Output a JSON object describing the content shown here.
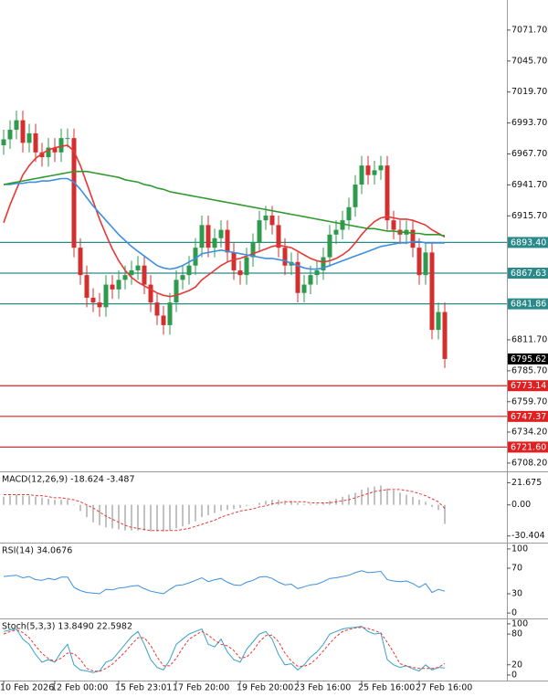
{
  "chart_data": [
    {
      "type": "candlestick",
      "categories": [
        "10 Feb 2026",
        null,
        null,
        null,
        null,
        null,
        null,
        null,
        "12 Feb 00:00",
        null,
        null,
        null,
        null,
        null,
        null,
        null,
        null,
        null,
        "15 Feb 23:01",
        null,
        null,
        null,
        null,
        null,
        null,
        null,
        null,
        "17 Feb 20:00",
        null,
        null,
        null,
        null,
        null,
        null,
        null,
        null,
        null,
        "19 Feb 20:00",
        null,
        null,
        null,
        null,
        null,
        null,
        null,
        null,
        "23 Feb 16:00",
        null,
        null,
        null,
        null,
        null,
        null,
        null,
        null,
        null,
        "25 Feb 16:00",
        null,
        null,
        null,
        null,
        null,
        null,
        null,
        null,
        "27 Feb 16:00",
        null,
        null,
        null,
        null
      ],
      "candles": {
        "open": [
          6975,
          6980,
          6988,
          6996,
          6977,
          6985,
          6969,
          6965,
          6973,
          6969,
          6981,
          6981,
          6889,
          6866,
          6847,
          6843,
          6839,
          6858,
          6854,
          6862,
          6866,
          6870,
          6874,
          6858,
          6843,
          6832,
          6824,
          6843,
          6862,
          6866,
          6874,
          6889,
          6908,
          6889,
          6897,
          6904,
          6885,
          6870,
          6866,
          6881,
          6893,
          6912,
          6916,
          6908,
          6889,
          6874,
          6877,
          6851,
          6858,
          6866,
          6870,
          6881,
          6900,
          6904,
          6912,
          6923,
          6942,
          6958,
          6950,
          6954,
          6958,
          6912,
          6904,
          6900,
          6904,
          6889,
          6866,
          6885,
          6820,
          6835
        ],
        "high": [
          6988,
          6996,
          7004,
          7004,
          6993,
          6993,
          6977,
          6981,
          6981,
          6989,
          6989,
          6989,
          6897,
          6874,
          6855,
          6851,
          6866,
          6866,
          6870,
          6874,
          6878,
          6882,
          6882,
          6866,
          6851,
          6840,
          6851,
          6870,
          6874,
          6882,
          6897,
          6916,
          6916,
          6905,
          6912,
          6912,
          6893,
          6878,
          6889,
          6901,
          6920,
          6924,
          6924,
          6916,
          6897,
          6885,
          6885,
          6866,
          6874,
          6878,
          6889,
          6908,
          6912,
          6920,
          6931,
          6950,
          6966,
          6966,
          6962,
          6966,
          6966,
          6920,
          6912,
          6912,
          6912,
          6897,
          6893,
          6893,
          6843,
          6843
        ],
        "low": [
          6967,
          6972,
          6980,
          6969,
          6969,
          6961,
          6957,
          6957,
          6961,
          6961,
          6973,
          6881,
          6858,
          6839,
          6835,
          6831,
          6831,
          6846,
          6846,
          6854,
          6858,
          6862,
          6850,
          6835,
          6824,
          6816,
          6816,
          6835,
          6854,
          6858,
          6866,
          6881,
          6881,
          6881,
          6889,
          6877,
          6862,
          6858,
          6858,
          6873,
          6885,
          6904,
          6900,
          6881,
          6866,
          6866,
          6843,
          6843,
          6850,
          6858,
          6862,
          6873,
          6892,
          6896,
          6904,
          6915,
          6934,
          6942,
          6942,
          6946,
          6904,
          6896,
          6892,
          6892,
          6881,
          6858,
          6858,
          6812,
          6812,
          6788
        ],
        "close": [
          6980,
          6988,
          6996,
          6977,
          6985,
          6969,
          6965,
          6973,
          6969,
          6981,
          6981,
          6889,
          6866,
          6847,
          6843,
          6839,
          6858,
          6854,
          6862,
          6866,
          6870,
          6874,
          6858,
          6843,
          6832,
          6824,
          6843,
          6862,
          6866,
          6874,
          6889,
          6908,
          6889,
          6897,
          6904,
          6885,
          6870,
          6866,
          6881,
          6893,
          6912,
          6916,
          6908,
          6889,
          6874,
          6877,
          6851,
          6858,
          6866,
          6870,
          6881,
          6900,
          6904,
          6912,
          6923,
          6942,
          6958,
          6950,
          6954,
          6958,
          6912,
          6904,
          6900,
          6904,
          6889,
          6866,
          6885,
          6820,
          6835,
          6795.62
        ]
      },
      "up_color": "#2e9a4e",
      "down_color": "#d32f2f",
      "moving_averages": [
        {
          "color": "#e53935",
          "values": [
            6910,
            6925,
            6938,
            6950,
            6958,
            6964,
            6968,
            6971,
            6973,
            6974,
            6975,
            6970,
            6958,
            6943,
            6928,
            6913,
            6900,
            6888,
            6878,
            6870,
            6864,
            6860,
            6857,
            6854,
            6851,
            6849,
            6848,
            6849,
            6851,
            6853,
            6856,
            6862,
            6866,
            6870,
            6874,
            6877,
            6879,
            6880,
            6882,
            6884,
            6886,
            6888,
            6890,
            6891,
            6890,
            6889,
            6886,
            6883,
            6880,
            6878,
            6877,
            6878,
            6880,
            6883,
            6887,
            6893,
            6900,
            6906,
            6911,
            6914,
            6915,
            6914,
            6913,
            6913,
            6912,
            6910,
            6908,
            6904,
            6901,
            6898
          ]
        },
        {
          "color": "#3d8fe0",
          "values": [
            6942,
            6942,
            6943,
            6943,
            6944,
            6944,
            6945,
            6945,
            6946,
            6947,
            6947,
            6944,
            6938,
            6931,
            6924,
            6918,
            6912,
            6906,
            6900,
            6895,
            6890,
            6886,
            6882,
            6878,
            6874,
            6872,
            6871,
            6872,
            6874,
            6877,
            6880,
            6884,
            6885,
            6886,
            6887,
            6886,
            6885,
            6884,
            6883,
            6882,
            6881,
            6880,
            6880,
            6879,
            6878,
            6876,
            6874,
            6872,
            6871,
            6871,
            6872,
            6874,
            6876,
            6878,
            6880,
            6882,
            6884,
            6886,
            6888,
            6890,
            6891,
            6892,
            6893,
            6893,
            6894,
            6894,
            6893,
            6893,
            6893,
            6893
          ]
        },
        {
          "color": "#2f9a2f",
          "values": [
            6942,
            6943,
            6944,
            6945,
            6946,
            6947,
            6948,
            6949,
            6950,
            6951,
            6952,
            6953,
            6953,
            6953,
            6952,
            6951,
            6950,
            6949,
            6948,
            6946,
            6945,
            6944,
            6942,
            6941,
            6939,
            6938,
            6936,
            6935,
            6934,
            6933,
            6932,
            6931,
            6930,
            6929,
            6928,
            6927,
            6926,
            6925,
            6924,
            6923,
            6922,
            6921,
            6920,
            6919,
            6918,
            6917,
            6916,
            6915,
            6914,
            6913,
            6912,
            6911,
            6910,
            6909,
            6908,
            6907,
            6906,
            6905,
            6905,
            6904,
            6903,
            6903,
            6902,
            6902,
            6901,
            6901,
            6900,
            6900,
            6900,
            6899
          ]
        }
      ],
      "levels": [
        {
          "value": 6893.4,
          "label": "6893.40",
          "color": "#2a8a8a"
        },
        {
          "value": 6867.63,
          "label": "6867.63",
          "color": "#2a8a8a"
        },
        {
          "value": 6841.86,
          "label": "6841.86",
          "color": "#2a8a8a"
        },
        {
          "value": 6773.14,
          "label": "6773.14",
          "color": "#e02020"
        },
        {
          "value": 6747.37,
          "label": "6747.37",
          "color": "#e02020"
        },
        {
          "value": 6721.6,
          "label": "6721.60",
          "color": "#e02020"
        }
      ],
      "last_price": 6795.62,
      "ylim": [
        6702,
        7095.4
      ],
      "yticks": [
        {
          "value": 7071.7,
          "label": "7071.70"
        },
        {
          "value": 7045.7,
          "label": "7045.70"
        },
        {
          "value": 7019.7,
          "label": "7019.70"
        },
        {
          "value": 6993.7,
          "label": "6993.70"
        },
        {
          "value": 6967.7,
          "label": "6967.70"
        },
        {
          "value": 6941.7,
          "label": "6941.70"
        },
        {
          "value": 6915.7,
          "label": "6915.70"
        },
        {
          "value": 6811.7,
          "label": "6811.70"
        },
        {
          "value": 6785.7,
          "label": "6785.70"
        },
        {
          "value": 6759.7,
          "label": "6759.70"
        },
        {
          "value": 6734.2,
          "label": "6734.20"
        },
        {
          "value": 6708.2,
          "label": "6708.20"
        }
      ]
    },
    {
      "type": "macd",
      "label": "MACD(12,26,9) -18.624 -3.487",
      "bars": {
        "color": "#9a9a9a",
        "values": [
          8,
          9,
          10,
          9,
          9,
          8,
          7,
          6,
          5,
          5,
          5,
          0,
          -6,
          -12,
          -17,
          -20,
          -22,
          -23,
          -24,
          -25,
          -25,
          -25,
          -25,
          -26,
          -26,
          -26,
          -25,
          -23,
          -21,
          -19,
          -16,
          -12,
          -10,
          -8,
          -6,
          -5,
          -4,
          -3,
          -1,
          0,
          2,
          4,
          5,
          5,
          4,
          4,
          2,
          1,
          1,
          1,
          2,
          4,
          6,
          8,
          10,
          12,
          15,
          17,
          18,
          19,
          16,
          14,
          12,
          10,
          8,
          5,
          3,
          -2,
          -5,
          -18.624
        ]
      },
      "line": {
        "color": "#e53935",
        "dash": true,
        "values": [
          10,
          10,
          10,
          10,
          10,
          9,
          9,
          8,
          7,
          7,
          6,
          5,
          3,
          0,
          -3,
          -7,
          -11,
          -14,
          -17,
          -20,
          -22,
          -23,
          -24,
          -25,
          -25,
          -25,
          -25,
          -25,
          -24,
          -23,
          -21,
          -19,
          -17,
          -15,
          -12,
          -10,
          -8,
          -6,
          -5,
          -4,
          -2,
          -1,
          1,
          2,
          3,
          3,
          3,
          3,
          2,
          2,
          2,
          2,
          3,
          4,
          5,
          7,
          9,
          11,
          13,
          14,
          15,
          15,
          15,
          14,
          13,
          11,
          9,
          6,
          3,
          -3.487
        ]
      },
      "ylim": [
        -36,
        31
      ],
      "yticks": [
        21.675,
        {
          "value": 0,
          "label": "0.00"
        },
        -30.404
      ]
    },
    {
      "type": "line",
      "label": "RSI(14) 34.0676",
      "series": [
        {
          "color": "#3d8fe0",
          "values": [
            57,
            58,
            59,
            55,
            57,
            52,
            51,
            54,
            52,
            56,
            56,
            40,
            35,
            32,
            31,
            30,
            37,
            36,
            39,
            40,
            42,
            43,
            38,
            34,
            32,
            30,
            37,
            43,
            44,
            47,
            51,
            55,
            49,
            52,
            54,
            48,
            44,
            43,
            48,
            51,
            56,
            57,
            54,
            48,
            44,
            45,
            38,
            41,
            44,
            45,
            49,
            54,
            55,
            57,
            59,
            63,
            66,
            63,
            64,
            65,
            52,
            50,
            49,
            50,
            46,
            40,
            46,
            32,
            37,
            34.0676
          ]
        }
      ],
      "ylim": [
        -7,
        107
      ],
      "yticks": [
        100,
        70,
        30,
        0
      ]
    },
    {
      "type": "line",
      "label": "Stoch(5,3,3) 13.8490 22.5982",
      "series": [
        {
          "color": "#3aa0c8",
          "values": [
            85,
            88,
            90,
            70,
            60,
            40,
            25,
            30,
            25,
            45,
            60,
            20,
            10,
            8,
            5,
            8,
            25,
            30,
            45,
            60,
            75,
            85,
            60,
            30,
            15,
            10,
            30,
            60,
            70,
            80,
            85,
            90,
            60,
            55,
            70,
            45,
            30,
            25,
            50,
            65,
            80,
            85,
            70,
            40,
            20,
            22,
            10,
            20,
            35,
            45,
            60,
            80,
            85,
            90,
            92,
            93,
            95,
            85,
            80,
            82,
            30,
            20,
            15,
            18,
            12,
            8,
            20,
            10,
            15,
            13.849
          ]
        },
        {
          "color": "#e53935",
          "dash": true,
          "values": [
            80,
            85,
            88,
            83,
            73,
            57,
            42,
            32,
            27,
            33,
            43,
            42,
            30,
            13,
            8,
            7,
            13,
            21,
            33,
            45,
            60,
            73,
            73,
            58,
            35,
            18,
            18,
            33,
            53,
            70,
            78,
            85,
            78,
            68,
            60,
            57,
            48,
            33,
            35,
            47,
            65,
            77,
            78,
            65,
            43,
            27,
            17,
            17,
            22,
            33,
            47,
            62,
            75,
            85,
            89,
            92,
            93,
            91,
            87,
            82,
            64,
            44,
            22,
            18,
            15,
            13,
            13,
            13,
            15,
            22.5982
          ]
        }
      ],
      "ylim": [
        -9,
        107
      ],
      "yticks": [
        100,
        80,
        20,
        0
      ]
    }
  ]
}
